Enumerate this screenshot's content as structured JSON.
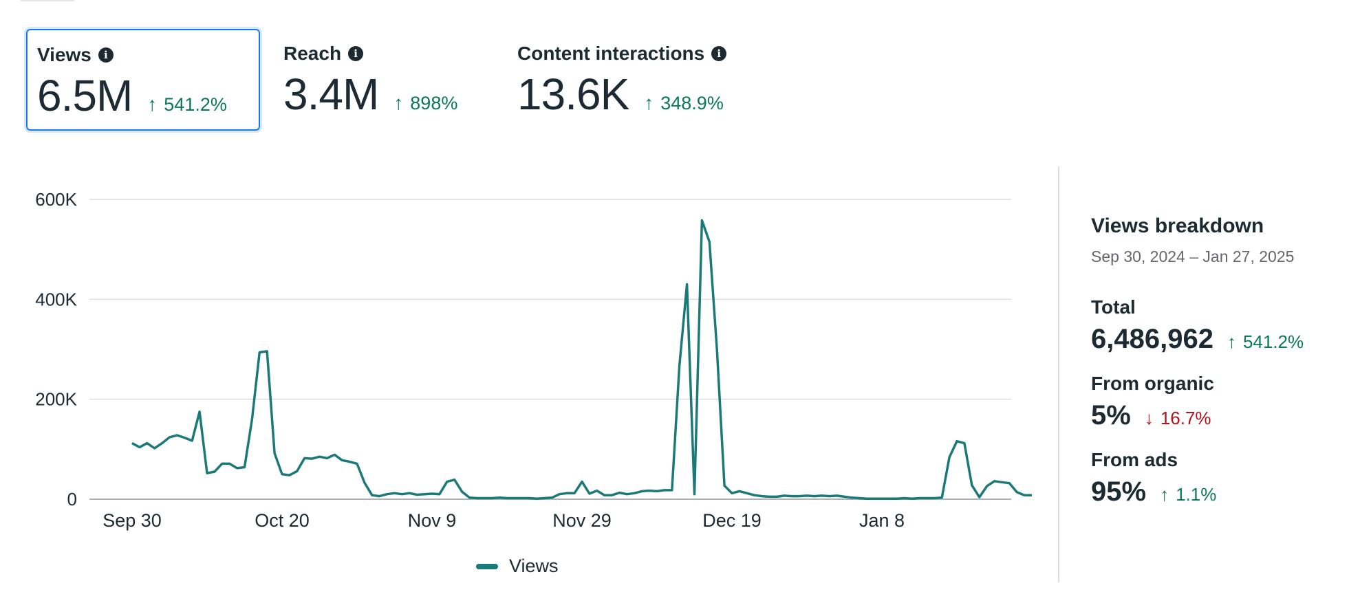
{
  "metrics": [
    {
      "title": "Views",
      "value": "6.5M",
      "change": "541.2%",
      "direction": "up",
      "selected": true
    },
    {
      "title": "Reach",
      "value": "3.4M",
      "change": "898%",
      "direction": "up"
    },
    {
      "title": "Content interactions",
      "value": "13.6K",
      "change": "348.9%",
      "direction": "up"
    }
  ],
  "icons": {
    "info": "i",
    "arrow_up": "↑",
    "arrow_down": "↓"
  },
  "colors": {
    "line": "#1b7a78",
    "positive": "#0a7a55",
    "negative": "#b3101a",
    "selected_border": "#1877f2"
  },
  "chart_data": {
    "type": "line",
    "series": [
      {
        "name": "Views",
        "color": "#1b7a78",
        "values": [
          112000,
          104000,
          112000,
          102000,
          112000,
          124000,
          128000,
          123000,
          117000,
          175000,
          52000,
          55000,
          71000,
          71000,
          62000,
          64000,
          160000,
          294000,
          296000,
          92000,
          50000,
          48000,
          56000,
          82000,
          81000,
          85000,
          82000,
          89000,
          78000,
          75000,
          71000,
          33000,
          8000,
          6000,
          10000,
          12000,
          10000,
          12000,
          9000,
          10000,
          11000,
          10000,
          35000,
          39000,
          15000,
          3000,
          2000,
          2000,
          2000,
          3000,
          2000,
          2000,
          2000,
          2000,
          1000,
          2000,
          3000,
          10000,
          12000,
          12000,
          35000,
          11000,
          17000,
          8000,
          8000,
          13000,
          10000,
          12000,
          16000,
          17000,
          16000,
          18000,
          18000,
          268000,
          430000,
          10000,
          558000,
          515000,
          300000,
          27000,
          12000,
          16000,
          12000,
          8000,
          6000,
          5000,
          5000,
          7000,
          6000,
          6000,
          7000,
          6000,
          7000,
          6000,
          7000,
          5000,
          3000,
          2000,
          1000,
          1000,
          1000,
          1000,
          1000,
          2000,
          1000,
          2000,
          2000,
          2000,
          3000,
          84000,
          116000,
          112000,
          28000,
          4000,
          26000,
          36000,
          34000,
          32000,
          14000,
          8000,
          8000,
          9000,
          9000,
          8000
        ]
      }
    ],
    "x_tick_labels": [
      "Sep 30",
      "Oct 20",
      "Nov 9",
      "Nov 29",
      "Dec 19",
      "Jan 8"
    ],
    "x_tick_indices": [
      0,
      20,
      40,
      60,
      80,
      100
    ],
    "y_ticks": [
      0,
      200000,
      400000,
      600000
    ],
    "y_tick_labels": [
      "0",
      "200K",
      "400K",
      "600K"
    ],
    "ylim": [
      0,
      600000
    ],
    "grid": true,
    "legend_position": "bottom-center"
  },
  "legend": {
    "label": "Views"
  },
  "breakdown": {
    "title": "Views breakdown",
    "date_range": "Sep 30, 2024 – Jan 27, 2025",
    "rows": [
      {
        "label": "Total",
        "value": "6,486,962",
        "change": "541.2%",
        "direction": "up"
      },
      {
        "label": "From organic",
        "value": "5%",
        "change": "16.7%",
        "direction": "down"
      },
      {
        "label": "From ads",
        "value": "95%",
        "change": "1.1%",
        "direction": "up"
      }
    ]
  }
}
